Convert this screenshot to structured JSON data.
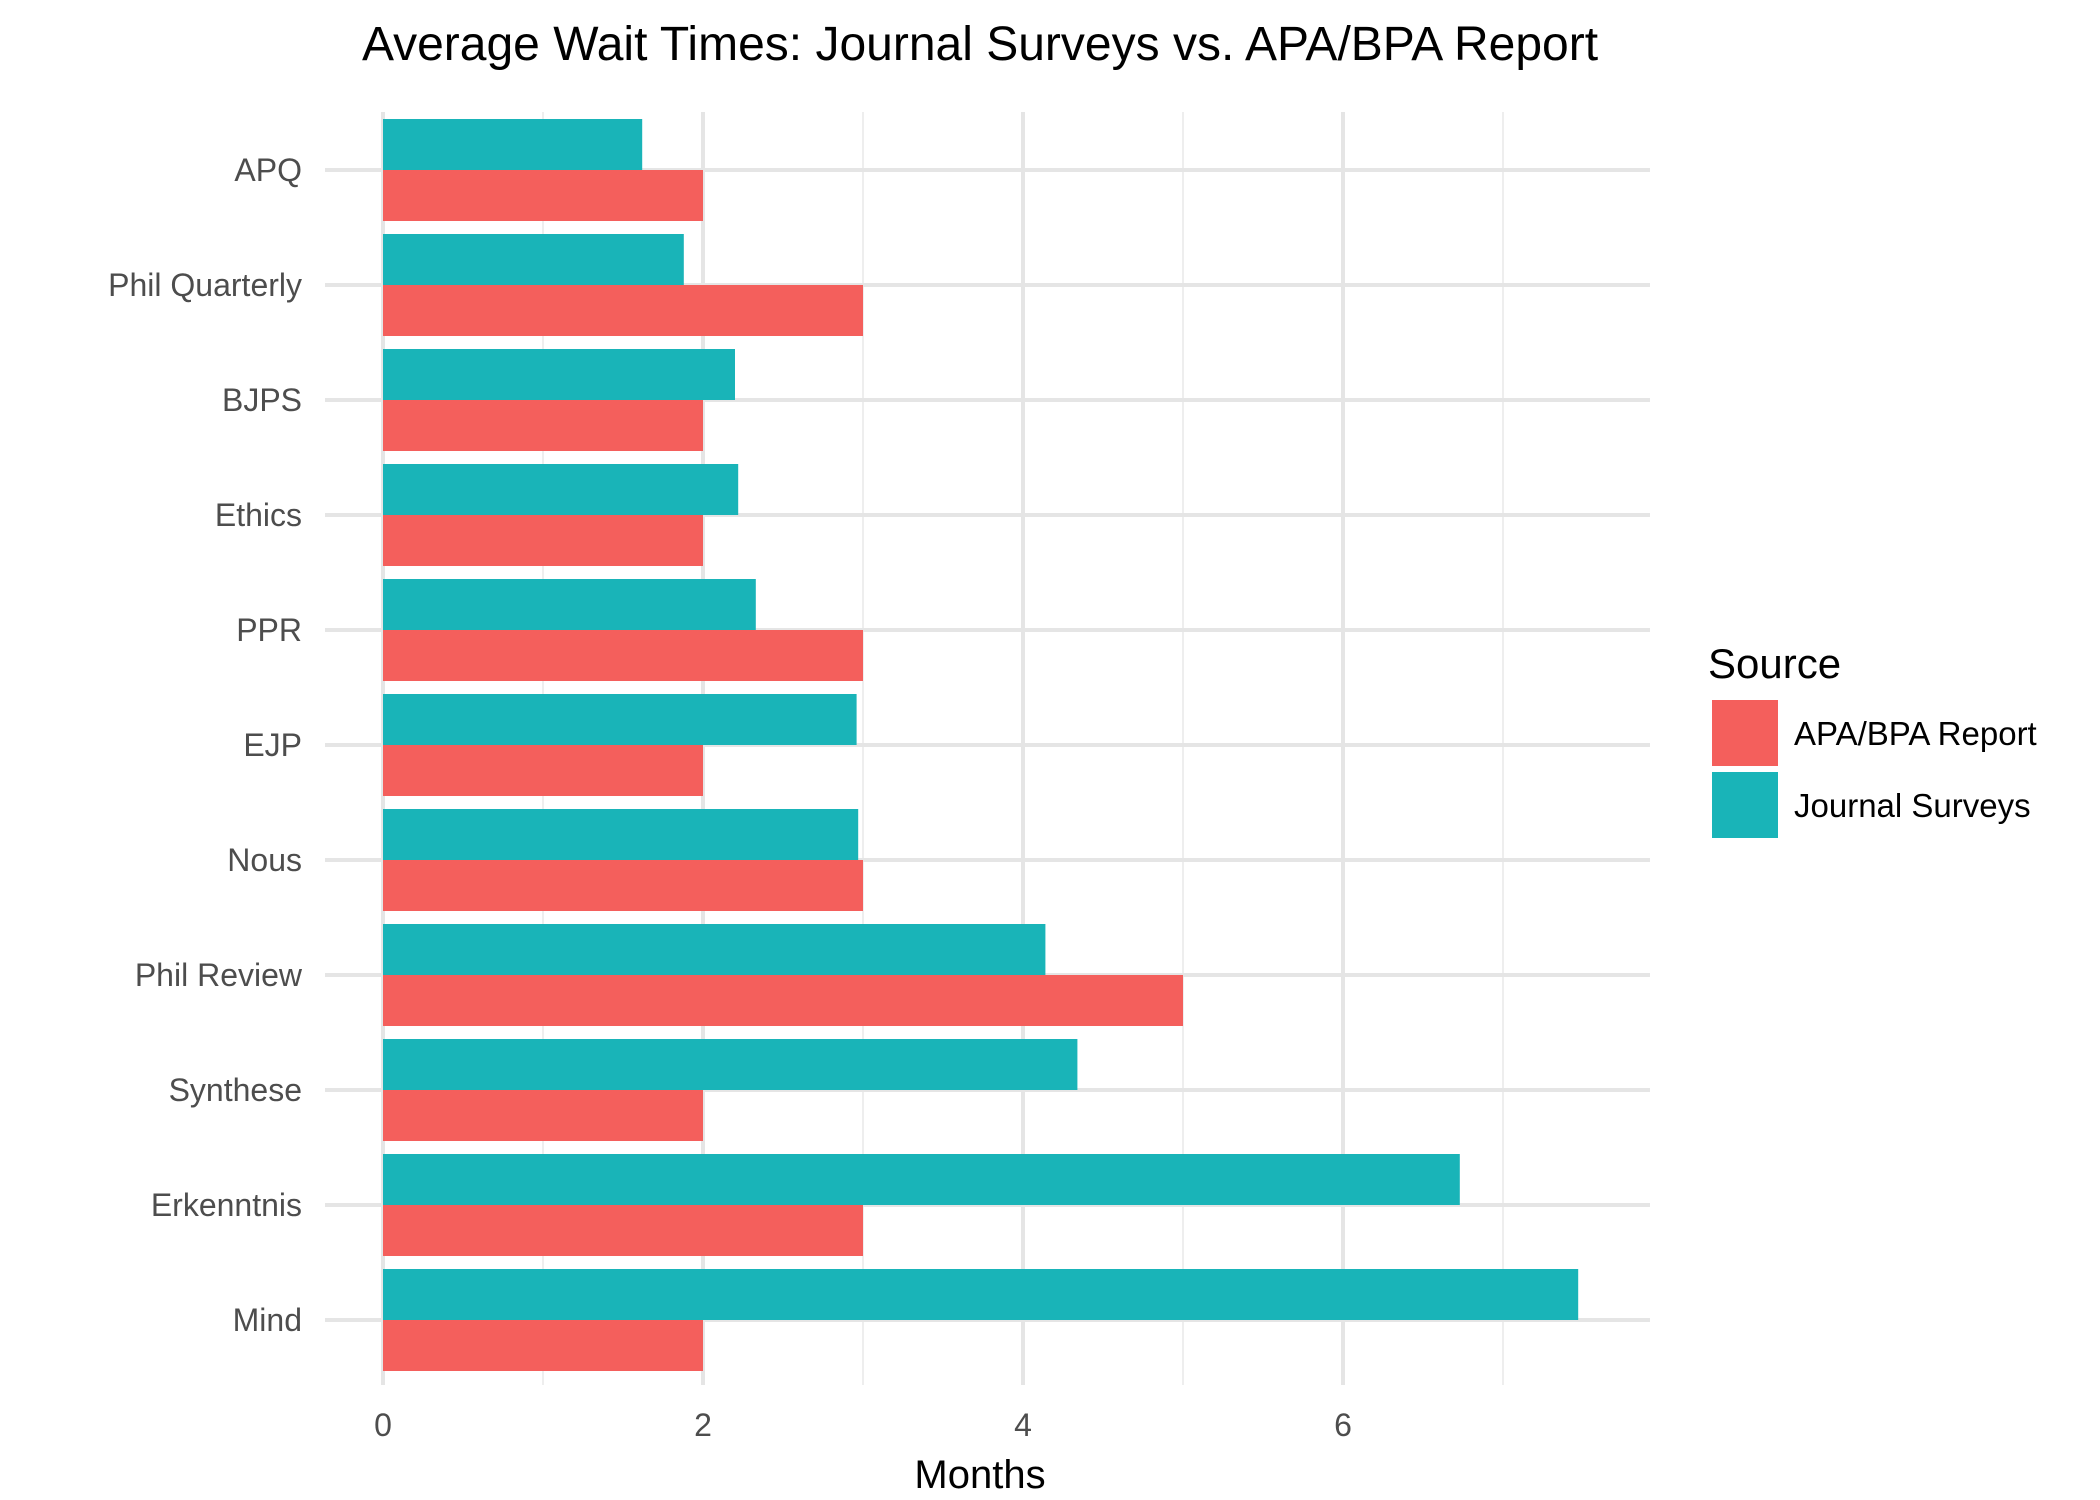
{
  "chart_data": {
    "type": "bar",
    "orientation": "horizontal",
    "title": "Average Wait Times: Journal Surveys vs. APA/BPA Report",
    "xlabel": "Months",
    "ylabel": "",
    "xlim": [
      0,
      7.8
    ],
    "x_ticks": [
      0,
      2,
      4,
      6
    ],
    "categories": [
      "APQ",
      "Phil Quarterly",
      "BJPS",
      "Ethics",
      "PPR",
      "EJP",
      "Nous",
      "Phil Review",
      "Synthese",
      "Erkenntnis",
      "Mind"
    ],
    "series": [
      {
        "name": "Journal Surveys",
        "color": "#19B4B8",
        "values": [
          1.62,
          1.88,
          2.2,
          2.22,
          2.33,
          2.96,
          2.97,
          4.14,
          4.34,
          6.73,
          7.47
        ]
      },
      {
        "name": "APA/BPA Report",
        "color": "#F45F5C",
        "values": [
          2,
          3,
          2,
          2,
          3,
          2,
          3,
          5,
          2,
          3,
          2
        ]
      }
    ],
    "legend": {
      "title": "Source",
      "position": "right",
      "entries": [
        {
          "label": "APA/BPA Report",
          "color": "#F45F5C"
        },
        {
          "label": "Journal Surveys",
          "color": "#19B4B8"
        }
      ]
    },
    "grid": true
  }
}
